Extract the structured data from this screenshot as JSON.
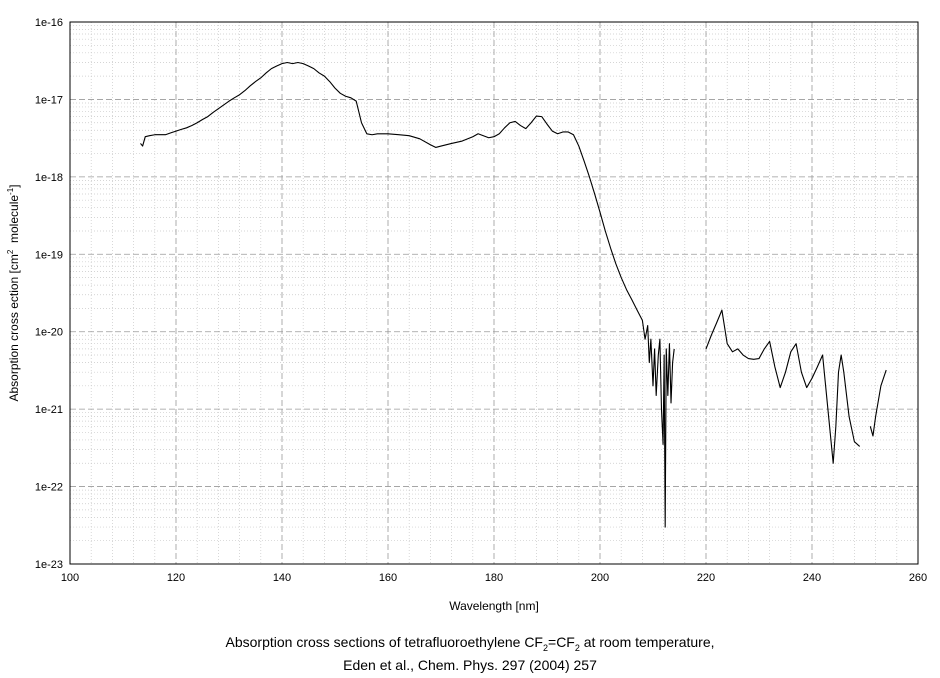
{
  "chart_data": {
    "type": "line",
    "title": "",
    "xlabel": "Wavelength [nm]",
    "ylabel": {
      "prefix": "Absorption cross ection [cm",
      "exp1": "2",
      "middle": "  molecule",
      "exp2": "-1",
      "suffix": "]"
    },
    "xlim": [
      100,
      260
    ],
    "ylim": [
      1e-23,
      1e-16
    ],
    "yscale": "log",
    "grid": true,
    "xticks": [
      "100",
      "120",
      "140",
      "160",
      "180",
      "200",
      "220",
      "240",
      "260"
    ],
    "yticks": [
      "1e-16",
      "1e-17",
      "1e-18",
      "1e-19",
      "1e-20",
      "1e-21",
      "1e-22",
      "1e-23"
    ],
    "series": [
      {
        "color": "#000000",
        "segments": [
          [
            [
              113.3,
              2.7e-18
            ],
            [
              113.7,
              2.5e-18
            ],
            [
              114.2,
              3.3e-18
            ],
            [
              115,
              3.4e-18
            ],
            [
              116,
              3.5e-18
            ],
            [
              117,
              3.5e-18
            ],
            [
              118,
              3.5e-18
            ],
            [
              119,
              3.7e-18
            ],
            [
              120,
              3.9e-18
            ],
            [
              121,
              4.1e-18
            ],
            [
              122,
              4.3e-18
            ],
            [
              123,
              4.6e-18
            ],
            [
              124,
              5e-18
            ],
            [
              125,
              5.5e-18
            ],
            [
              126,
              6e-18
            ],
            [
              127,
              6.8e-18
            ],
            [
              128,
              7.6e-18
            ],
            [
              129,
              8.5e-18
            ],
            [
              130,
              9.5e-18
            ],
            [
              131,
              1.05e-17
            ],
            [
              132,
              1.15e-17
            ],
            [
              133,
              1.3e-17
            ],
            [
              134,
              1.5e-17
            ],
            [
              135,
              1.7e-17
            ],
            [
              136,
              1.9e-17
            ],
            [
              137,
              2.2e-17
            ],
            [
              138,
              2.5e-17
            ],
            [
              139,
              2.7e-17
            ],
            [
              140,
              2.9e-17
            ],
            [
              141,
              3e-17
            ],
            [
              142,
              2.9e-17
            ],
            [
              143,
              3e-17
            ],
            [
              144,
              2.9e-17
            ],
            [
              145,
              2.7e-17
            ],
            [
              146,
              2.5e-17
            ],
            [
              147,
              2.2e-17
            ],
            [
              148,
              2e-17
            ],
            [
              149,
              1.7e-17
            ],
            [
              150,
              1.4e-17
            ],
            [
              151,
              1.2e-17
            ],
            [
              152,
              1.1e-17
            ],
            [
              153,
              1.05e-17
            ],
            [
              154,
              9.5e-18
            ],
            [
              155,
              5e-18
            ],
            [
              156,
              3.6e-18
            ],
            [
              157,
              3.5e-18
            ],
            [
              158,
              3.6e-18
            ],
            [
              160,
              3.6e-18
            ],
            [
              162,
              3.5e-18
            ],
            [
              164,
              3.4e-18
            ],
            [
              166,
              3.1e-18
            ],
            [
              168,
              2.6e-18
            ],
            [
              169,
              2.4e-18
            ],
            [
              170,
              2.5e-18
            ],
            [
              172,
              2.7e-18
            ],
            [
              174,
              2.9e-18
            ],
            [
              176,
              3.3e-18
            ],
            [
              177,
              3.6e-18
            ],
            [
              178,
              3.4e-18
            ],
            [
              179,
              3.2e-18
            ],
            [
              180,
              3.3e-18
            ],
            [
              181,
              3.6e-18
            ],
            [
              182,
              4.3e-18
            ],
            [
              183,
              5e-18
            ],
            [
              184,
              5.2e-18
            ],
            [
              185,
              4.6e-18
            ],
            [
              186,
              4.2e-18
            ],
            [
              187,
              5e-18
            ],
            [
              188,
              6.1e-18
            ],
            [
              189,
              6e-18
            ],
            [
              190,
              4.8e-18
            ],
            [
              191,
              3.9e-18
            ],
            [
              192,
              3.6e-18
            ],
            [
              193,
              3.8e-18
            ],
            [
              194,
              3.8e-18
            ],
            [
              195,
              3.5e-18
            ],
            [
              196,
              2.5e-18
            ],
            [
              197,
              1.6e-18
            ],
            [
              198,
              1e-18
            ],
            [
              199,
              6e-19
            ],
            [
              200,
              3.5e-19
            ],
            [
              201,
              2e-19
            ],
            [
              202,
              1.2e-19
            ],
            [
              203,
              7.5e-20
            ],
            [
              204,
              5e-20
            ],
            [
              205,
              3.5e-20
            ],
            [
              206,
              2.6e-20
            ],
            [
              207,
              1.9e-20
            ],
            [
              208,
              1.4e-20
            ],
            [
              208.5,
              8e-21
            ],
            [
              209,
              1.2e-20
            ],
            [
              209.3,
              4e-21
            ],
            [
              209.6,
              8e-21
            ],
            [
              210,
              2e-21
            ],
            [
              210.3,
              6e-21
            ],
            [
              210.6,
              1.5e-21
            ],
            [
              211,
              5e-21
            ],
            [
              211.3,
              8e-21
            ],
            [
              211.6,
              1e-21
            ],
            [
              211.9,
              3.5e-22
            ],
            [
              212.1,
              5e-21
            ],
            [
              212.3,
              3e-23
            ],
            [
              212.5,
              6e-21
            ],
            [
              212.8,
              1.5e-21
            ],
            [
              213.1,
              7e-21
            ],
            [
              213.4,
              1.2e-21
            ],
            [
              213.7,
              4e-21
            ],
            [
              214,
              6e-21
            ]
          ],
          [
            [
              220,
              6e-21
            ],
            [
              221,
              9e-21
            ],
            [
              222,
              1.3e-20
            ],
            [
              223,
              1.9e-20
            ],
            [
              224,
              7e-21
            ],
            [
              225,
              5.5e-21
            ],
            [
              226,
              6e-21
            ],
            [
              227,
              5e-21
            ],
            [
              228,
              4.5e-21
            ],
            [
              229,
              4.4e-21
            ],
            [
              230,
              4.5e-21
            ],
            [
              231,
              6e-21
            ],
            [
              232,
              7.5e-21
            ],
            [
              233,
              3.5e-21
            ],
            [
              234,
              1.9e-21
            ],
            [
              235,
              3e-21
            ],
            [
              236,
              5.5e-21
            ],
            [
              237,
              7e-21
            ],
            [
              238,
              3e-21
            ],
            [
              239,
              1.9e-21
            ],
            [
              240,
              2.5e-21
            ],
            [
              241,
              3.5e-21
            ],
            [
              242,
              5e-21
            ],
            [
              243,
              1e-21
            ],
            [
              244,
              2e-22
            ],
            [
              244.5,
              6e-22
            ],
            [
              245,
              3e-21
            ],
            [
              245.5,
              5e-21
            ],
            [
              246,
              3e-21
            ],
            [
              247,
              8e-22
            ],
            [
              248,
              3.8e-22
            ],
            [
              249,
              3.3e-22
            ]
          ],
          [
            [
              251,
              6e-22
            ],
            [
              251.5,
              4.5e-22
            ],
            [
              252,
              8e-22
            ],
            [
              253,
              2e-21
            ],
            [
              254,
              3.2e-21
            ]
          ]
        ]
      }
    ]
  },
  "caption": {
    "line1_a": "Absorption cross sections of tetrafluoroethylene CF",
    "line1_sub1": "2",
    "line1_b": "=CF",
    "line1_sub2": "2",
    "line1_c": " at room temperature,",
    "line2": "Eden et al., Chem. Phys. 297 (2004) 257"
  }
}
